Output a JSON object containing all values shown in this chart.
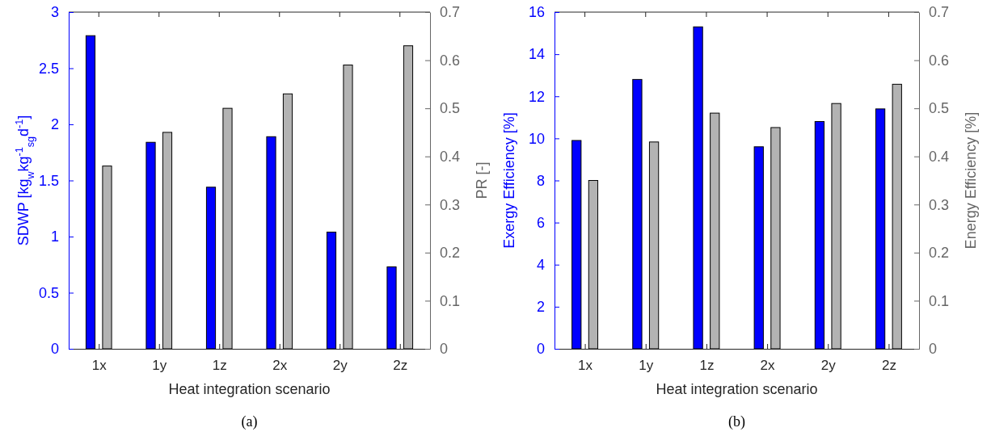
{
  "chart_data": [
    {
      "type": "bar",
      "categories": [
        "1x",
        "1y",
        "1z",
        "2x",
        "2y",
        "2z"
      ],
      "xlabel": "Heat integration scenario",
      "ylabel": "SDWP [kg$_{w}$kg$^{-1}$$_{sg}$d$^{-1}$]",
      "y2label": "PR [-]",
      "ylim": [
        0,
        3
      ],
      "yticks": [
        0,
        0.5,
        1,
        1.5,
        2,
        2.5,
        3
      ],
      "y2lim": [
        0,
        0.7
      ],
      "y2ticks": [
        0,
        0.1,
        0.2,
        0.3,
        0.4,
        0.5,
        0.6,
        0.7
      ],
      "grid": false,
      "annotations": [
        "(a)"
      ],
      "series": [
        {
          "color": "#0000ff",
          "values": [
            2.79,
            1.84,
            1.44,
            1.89,
            1.04,
            0.73
          ]
        },
        {
          "color": "#b3b3b3",
          "axis": "y2",
          "values": [
            0.38,
            0.45,
            0.5,
            0.53,
            0.59,
            0.63
          ]
        }
      ]
    },
    {
      "type": "bar",
      "categories": [
        "1x",
        "1y",
        "1z",
        "2x",
        "2y",
        "2z"
      ],
      "xlabel": "Heat integration scenario",
      "ylabel": "Exergy Efficiency [%]",
      "y2label": "Energy Efficiency [%]",
      "ylim": [
        0,
        16
      ],
      "yticks": [
        0,
        2,
        4,
        6,
        8,
        10,
        12,
        14,
        16
      ],
      "y2lim": [
        0,
        0.7
      ],
      "y2ticks": [
        0,
        0.1,
        0.2,
        0.3,
        0.4,
        0.5,
        0.6,
        0.7
      ],
      "grid": false,
      "annotations": [
        "(b)"
      ],
      "series": [
        {
          "color": "#0000ff",
          "values": [
            9.9,
            12.8,
            15.3,
            9.6,
            10.8,
            11.4
          ]
        },
        {
          "color": "#b3b3b3",
          "axis": "y2",
          "values": [
            0.35,
            0.43,
            0.49,
            0.46,
            0.51,
            0.55
          ]
        }
      ]
    }
  ]
}
